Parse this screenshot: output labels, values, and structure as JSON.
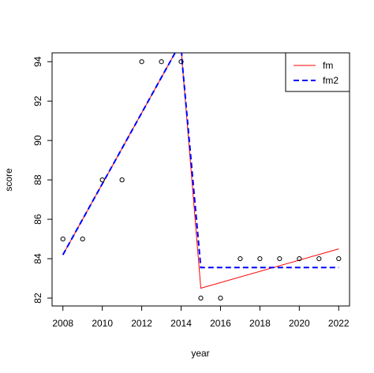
{
  "chart_data": {
    "type": "scatter",
    "title": "",
    "xlabel": "year",
    "ylabel": "score",
    "xlim": [
      2007.45,
      2022.55
    ],
    "ylim": [
      81.6,
      94.45
    ],
    "x_ticks": [
      2008,
      2010,
      2012,
      2014,
      2016,
      2018,
      2020,
      2022
    ],
    "x_tick_labels": [
      "2008",
      "2010",
      "2012",
      "2014",
      "2016",
      "2018",
      "2020",
      "2022"
    ],
    "y_ticks": [
      82,
      84,
      86,
      88,
      90,
      92,
      94
    ],
    "y_tick_labels": [
      "82",
      "84",
      "86",
      "88",
      "90",
      "92",
      "94"
    ],
    "grid": false,
    "legend": {
      "position": "top-right",
      "entries": [
        {
          "label": "fm",
          "color": "#ff0000",
          "style": "solid"
        },
        {
          "label": "fm2",
          "color": "#0000ff",
          "style": "dashed"
        }
      ]
    },
    "points": {
      "x": [
        2008,
        2009,
        2010,
        2011,
        2012,
        2013,
        2014,
        2015,
        2016,
        2017,
        2018,
        2019,
        2020,
        2021,
        2022
      ],
      "y": [
        85,
        85,
        88,
        88,
        94,
        94,
        94,
        82,
        82,
        84,
        84,
        84,
        84,
        84,
        84
      ]
    },
    "series": [
      {
        "name": "fm",
        "color": "#ff0000",
        "style": "solid",
        "x": [
          2008,
          2014,
          2014.05,
          2015,
          2022
        ],
        "y": [
          84.2,
          95.0,
          94.0,
          82.5,
          84.5
        ]
      },
      {
        "name": "fm2",
        "color": "#0000ff",
        "style": "dashed",
        "x": [
          2008,
          2014,
          2014.05,
          2015,
          2022
        ],
        "y": [
          84.2,
          95.0,
          94.0,
          83.55,
          83.55
        ]
      }
    ]
  }
}
